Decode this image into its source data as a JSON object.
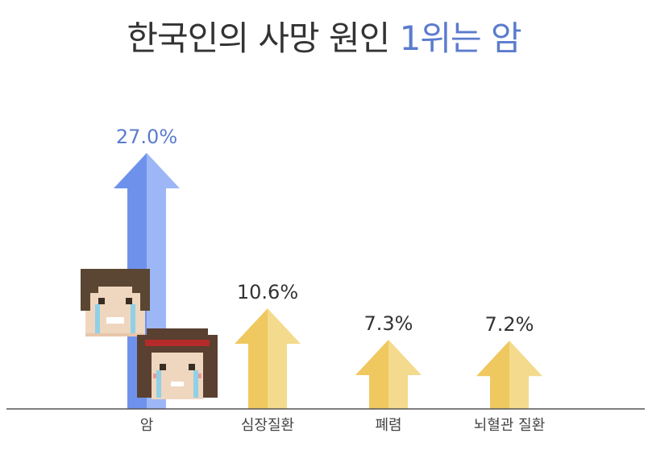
{
  "title": {
    "main": "한국인의 사망 원인",
    "highlight": "1위는 암"
  },
  "chart_data": {
    "type": "bar",
    "categories": [
      "암",
      "심장질환",
      "폐렴",
      "뇌혈관 질환"
    ],
    "values": [
      27.0,
      10.6,
      7.3,
      7.2
    ],
    "value_labels": [
      "27.0%",
      "10.6%",
      "7.3%",
      "7.2%"
    ],
    "unit": "%",
    "ylim": [
      0,
      30
    ],
    "highlight_index": 0,
    "colors": {
      "highlight_dark": "#6e92ec",
      "highlight_light": "#9db6f6",
      "highlight_label": "#5b7ccd",
      "normal_dark": "#efc85f",
      "normal_light": "#f4da8c",
      "normal_label": "#333333",
      "axis": "#555555"
    }
  },
  "icons": [
    "crying-man-icon",
    "crying-woman-icon"
  ]
}
